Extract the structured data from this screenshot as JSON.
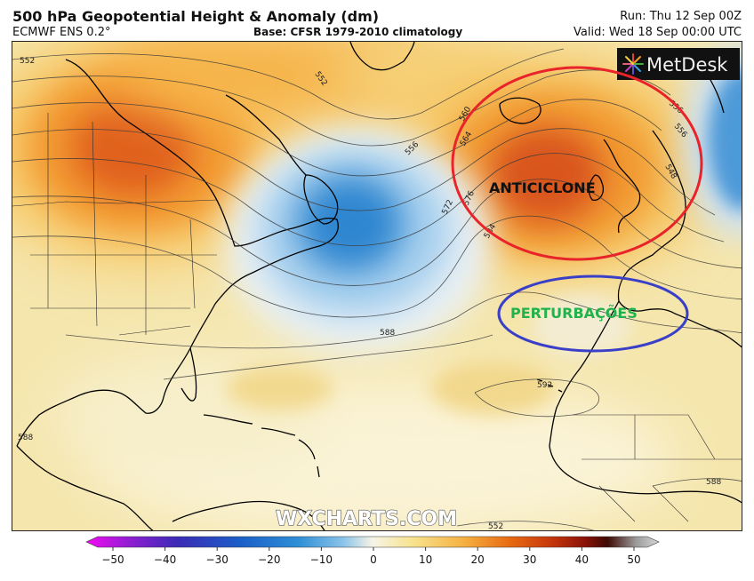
{
  "header": {
    "title": "500 hPa Geopotential Height & Anomaly (dm)",
    "model": "ECMWF ENS 0.2°",
    "base": "Base: CFSR 1979-2010 climatology",
    "run": "Run: Thu 12 Sep 00Z",
    "valid": "Valid: Wed 18 Sep 00:00 UTC"
  },
  "logo": {
    "text": "MetDesk"
  },
  "watermark": "WXCHARTS.COM",
  "annotations": {
    "high": {
      "label": "ANTICICLONE",
      "ring_color": "#e8232a",
      "text_color": "#111111"
    },
    "low": {
      "label": "PERTURBAÇÕES",
      "ring_color": "#3a3fc8",
      "text_color": "#22b24c"
    }
  },
  "contour_labels": [
    "552",
    "552",
    "556",
    "556",
    "560",
    "564",
    "572",
    "576",
    "584",
    "588",
    "592",
    "588",
    "588",
    "556",
    "548",
    "552"
  ],
  "colorbar": {
    "ticks": [
      "−50",
      "−40",
      "−30",
      "−20",
      "−10",
      "0",
      "10",
      "20",
      "30",
      "40",
      "50"
    ],
    "colors": [
      "#f20cf2",
      "#8a1fd0",
      "#3a2bb6",
      "#1b5fc8",
      "#2e8fd6",
      "#8cc4ea",
      "#f7f4e6",
      "#f7e38e",
      "#f6b041",
      "#e86a12",
      "#c8380c",
      "#8c1208",
      "#3d0904",
      "#9a9a9a",
      "#d8d8d8"
    ]
  }
}
